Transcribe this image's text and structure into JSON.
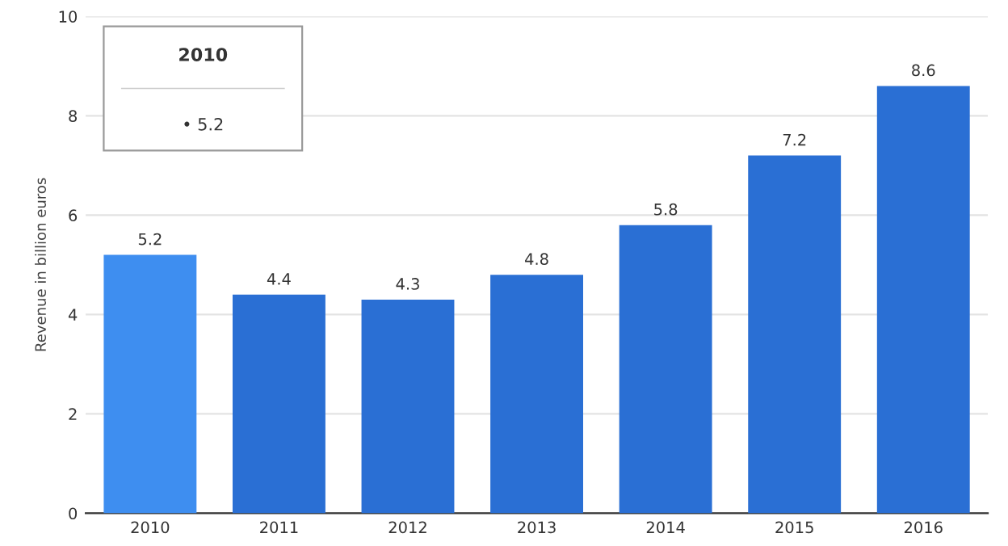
{
  "chart_data": {
    "type": "bar",
    "ylabel": "Revenue in billion euros",
    "categories": [
      "2010",
      "2011",
      "2012",
      "2013",
      "2014",
      "2015",
      "2016"
    ],
    "values": [
      5.2,
      4.4,
      4.3,
      4.8,
      5.8,
      7.2,
      8.6
    ],
    "colors": [
      "#3e8ef0",
      "#2a6fd4",
      "#2a6fd4",
      "#2a6fd4",
      "#2a6fd4",
      "#2a6fd4",
      "#2a6fd4"
    ],
    "ylim": [
      0,
      10
    ],
    "yticks": [
      0,
      2,
      4,
      6,
      8,
      10
    ],
    "grid": "y",
    "data_labels": true,
    "annotations": [
      "2010",
      "• 5.2"
    ]
  }
}
